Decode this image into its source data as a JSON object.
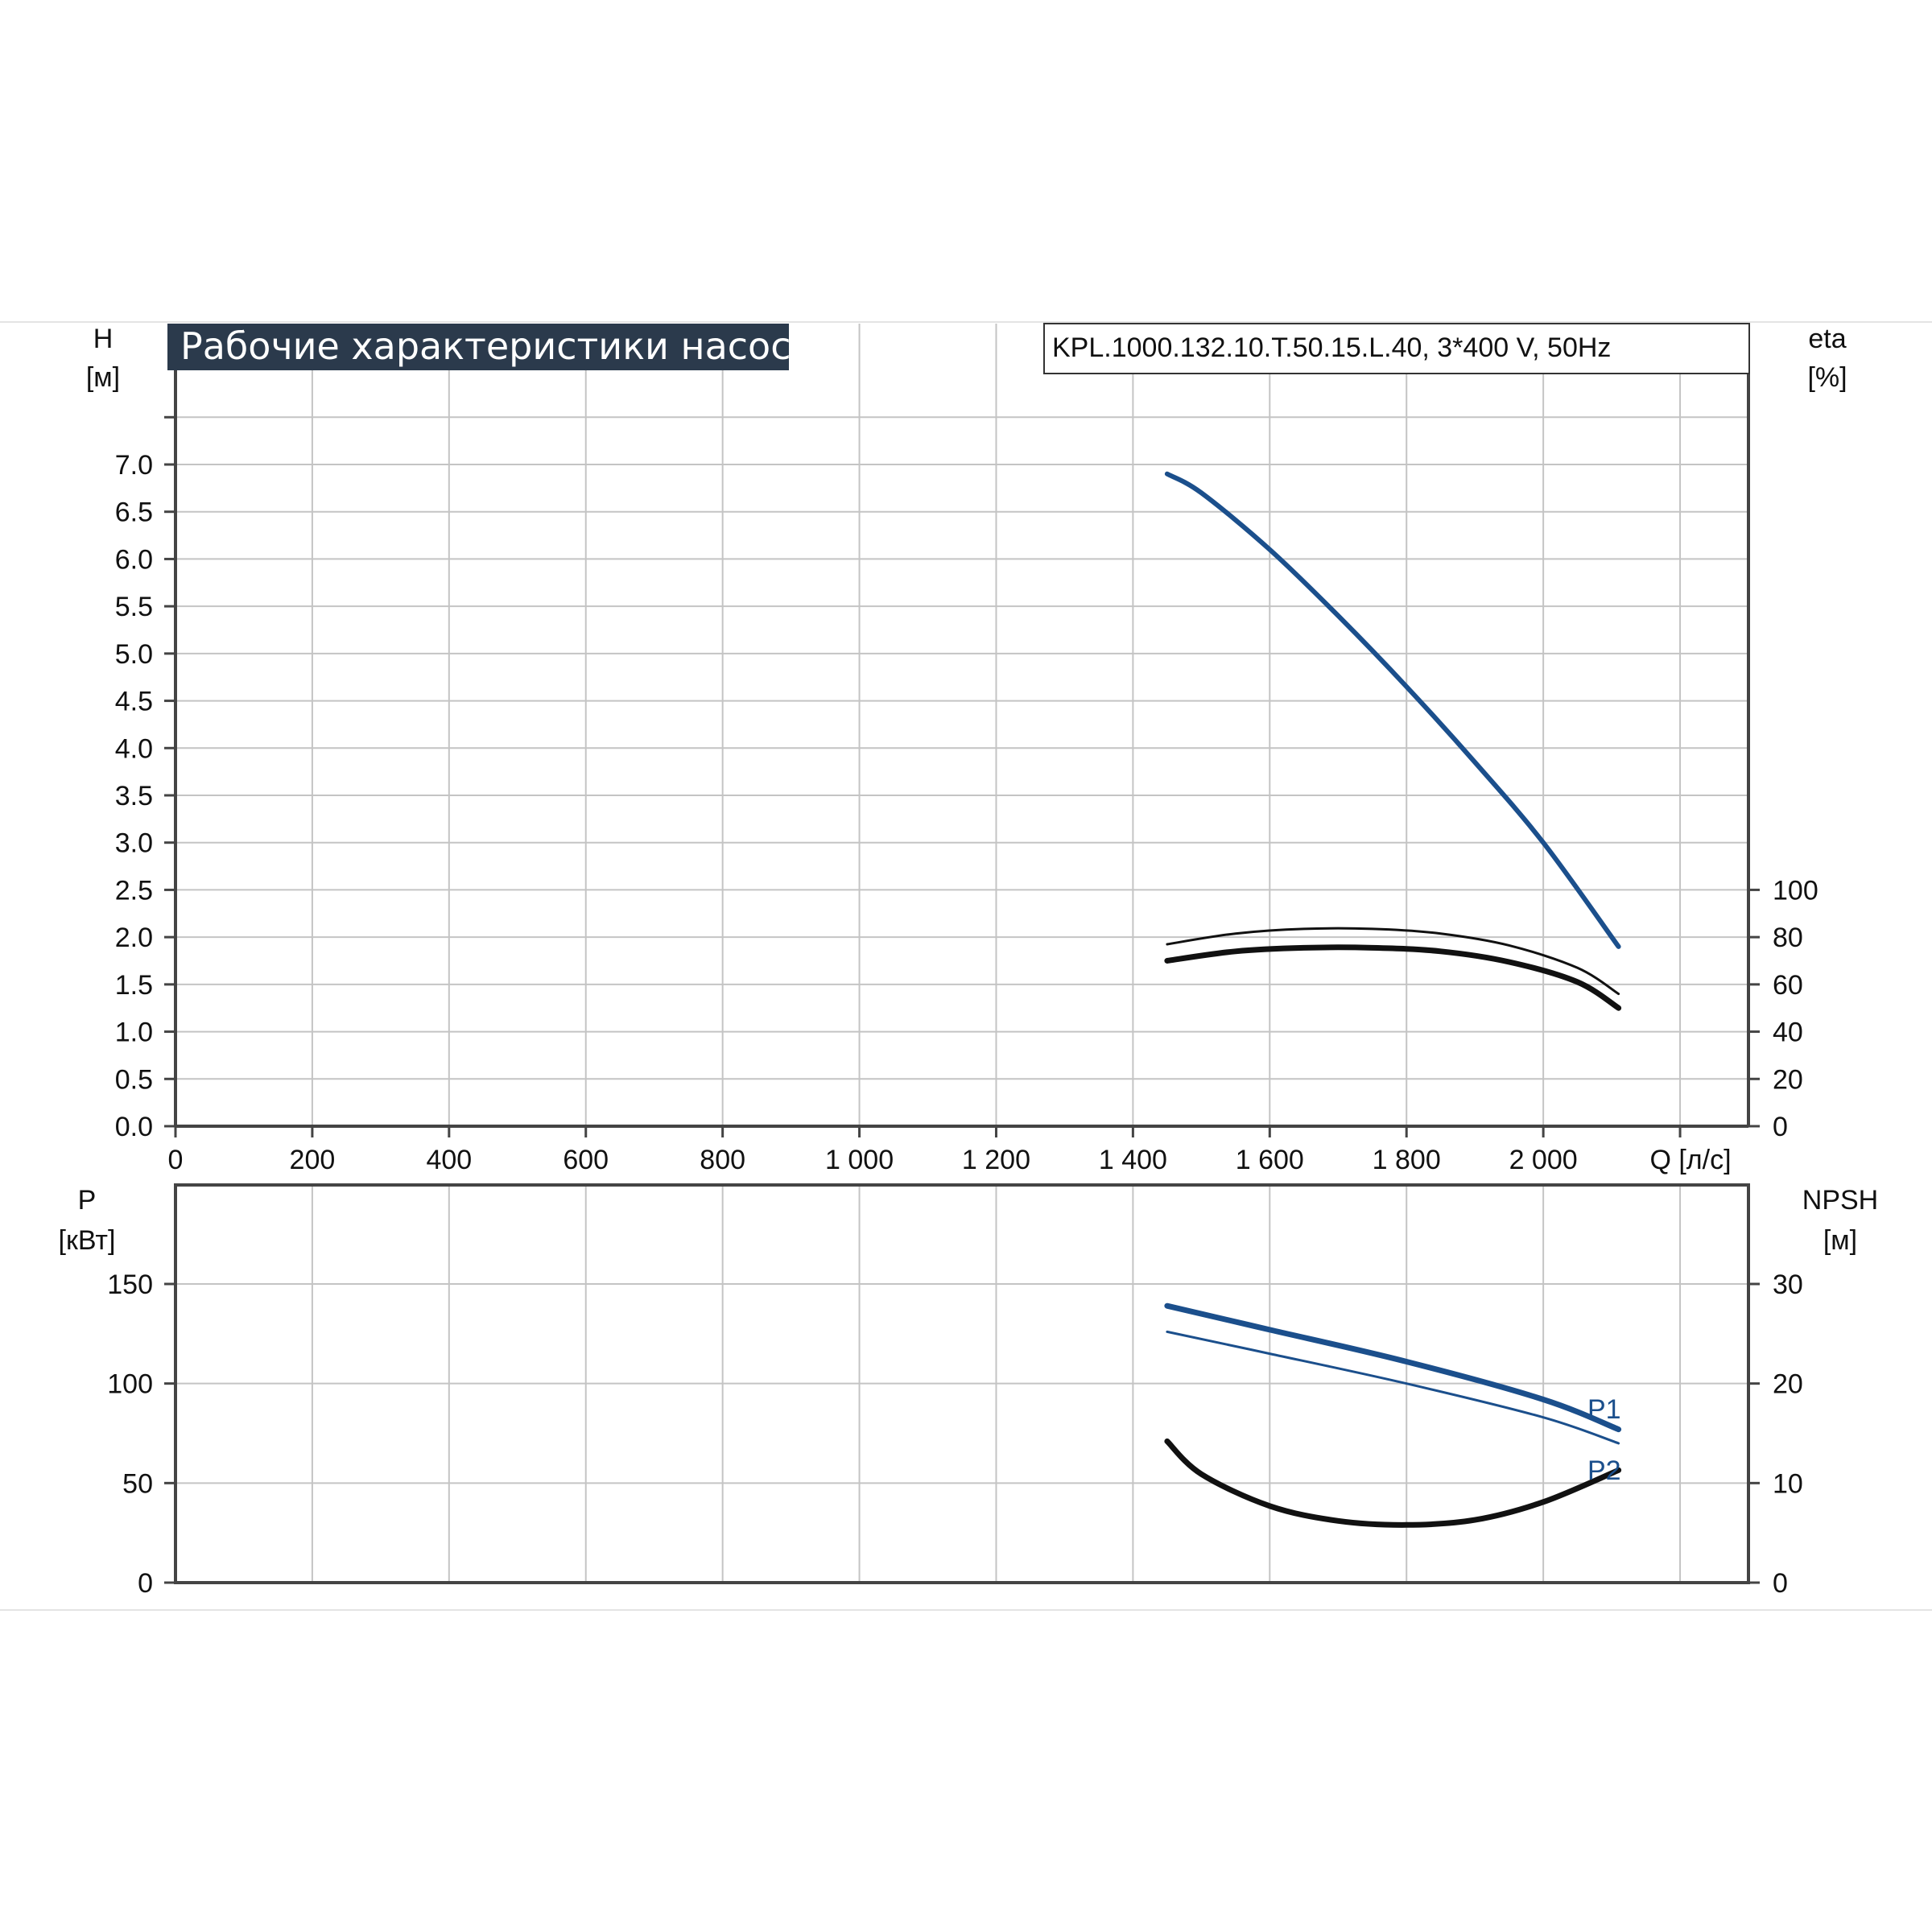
{
  "colors": {
    "head": "#1b4f8c",
    "eff": "#111111",
    "power": "#1b4f8c",
    "npsh": "#111111",
    "grid": "#c4c4c4",
    "axis": "#444444",
    "titleBg": "#2b3a4c"
  },
  "chart_data": [
    {
      "type": "line",
      "title": "Рабочие характеристики насоса",
      "subtitle": "KPL.1000.132.10.T.50.15.L.40, 3*400 V, 50Hz",
      "x_axis": {
        "label": "Q [л/с]",
        "range": [
          0,
          2300
        ],
        "ticks": [
          0,
          200,
          400,
          600,
          800,
          1000,
          1200,
          1400,
          1600,
          1800,
          2000
        ],
        "tick_labels": [
          "0",
          "200",
          "400",
          "600",
          "800",
          "1 000",
          "1 200",
          "1 400",
          "1 600",
          "1 800",
          "2 000"
        ]
      },
      "y_axis_left": {
        "label_line1": "H",
        "label_line2": "[м]",
        "range": [
          0,
          7.5
        ],
        "ticks": [
          0,
          0.5,
          1.0,
          1.5,
          2.0,
          2.5,
          3.0,
          3.5,
          4.0,
          4.5,
          5.0,
          5.5,
          6.0,
          6.5,
          7.0
        ],
        "tick_labels": [
          "0.0",
          "0.5",
          "1.0",
          "1.5",
          "2.0",
          "2.5",
          "3.0",
          "3.5",
          "4.0",
          "4.5",
          "5.0",
          "5.5",
          "6.0",
          "6.5",
          "7.0"
        ]
      },
      "y_axis_right": {
        "label_line1": "eta",
        "label_line2": "[%]",
        "range": [
          0,
          100
        ],
        "ticks": [
          0,
          20,
          40,
          60,
          80,
          100
        ],
        "tick_labels": [
          "0",
          "20",
          "40",
          "60",
          "80",
          "100"
        ]
      },
      "grid": true,
      "series": [
        {
          "axis": "left",
          "color_key": "head",
          "width": 6,
          "x": [
            1450,
            1500,
            1600,
            1700,
            1800,
            1900,
            2000,
            2110
          ],
          "y": [
            6.9,
            6.7,
            6.1,
            5.4,
            4.65,
            3.85,
            3.0,
            1.9
          ]
        },
        {
          "axis": "right",
          "color_key": "eff",
          "width": 3,
          "x": [
            1450,
            1550,
            1650,
            1750,
            1850,
            1950,
            2050,
            2110
          ],
          "y": [
            77,
            81.5,
            83.5,
            83.5,
            81.5,
            76.5,
            67,
            56
          ]
        },
        {
          "axis": "right",
          "color_key": "eff",
          "width": 7,
          "x": [
            1450,
            1550,
            1650,
            1750,
            1850,
            1950,
            2050,
            2110
          ],
          "y": [
            70,
            74,
            75.5,
            75.5,
            74,
            69.5,
            61,
            50
          ]
        }
      ]
    },
    {
      "type": "line",
      "x_axis": {
        "range": [
          0,
          2300
        ],
        "ticks": [
          0,
          200,
          400,
          600,
          800,
          1000,
          1200,
          1400,
          1600,
          1800,
          2000
        ]
      },
      "y_axis_left": {
        "label_line1": "P",
        "label_line2": "[кВт]",
        "range": [
          0,
          150
        ],
        "ticks": [
          0,
          50,
          100,
          150
        ],
        "tick_labels": [
          "0",
          "50",
          "100",
          "150"
        ]
      },
      "y_axis_right": {
        "label_line1": "NPSH",
        "label_line2": "[м]",
        "range": [
          0,
          30
        ],
        "ticks": [
          0,
          10,
          20,
          30
        ],
        "tick_labels": [
          "0",
          "10",
          "20",
          "30"
        ]
      },
      "grid": true,
      "series": [
        {
          "name": "P1",
          "axis": "left",
          "color_key": "power",
          "width": 7,
          "x": [
            1450,
            1600,
            1800,
            2000,
            2110
          ],
          "y": [
            139,
            127,
            111,
            92,
            77
          ]
        },
        {
          "name": "P2",
          "axis": "left",
          "color_key": "power",
          "width": 3,
          "x": [
            1450,
            1600,
            1800,
            2000,
            2110
          ],
          "y": [
            126,
            115,
            100,
            83,
            70
          ]
        },
        {
          "axis": "right",
          "color_key": "npsh",
          "width": 7,
          "x": [
            1450,
            1500,
            1600,
            1700,
            1800,
            1900,
            2000,
            2110
          ],
          "y": [
            14.2,
            10.9,
            7.7,
            6.2,
            5.8,
            6.3,
            8.1,
            11.3
          ]
        }
      ]
    }
  ]
}
